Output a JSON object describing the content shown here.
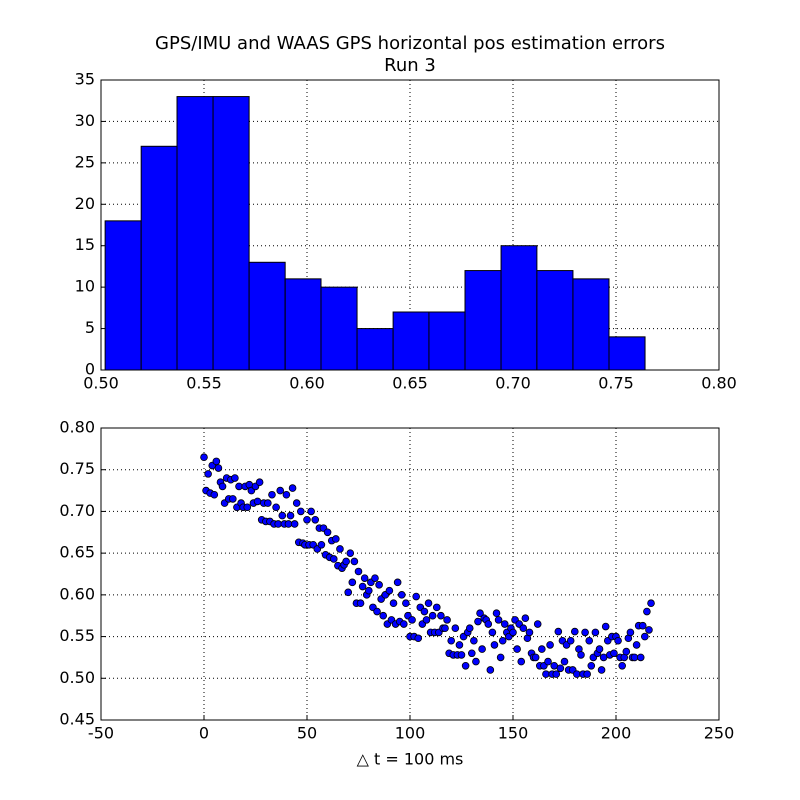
{
  "chart_data": [
    {
      "type": "histogram",
      "title": "GPS/IMU and WAAS GPS horizontal pos estimation errors",
      "subtitle": "Run 3",
      "bins": [
        0.502,
        0.5195,
        0.5369,
        0.5544,
        0.5719,
        0.5894,
        0.6068,
        0.6243,
        0.6418,
        0.6592,
        0.6767,
        0.6942,
        0.7116,
        0.7291,
        0.7466,
        0.7641
      ],
      "counts": [
        18,
        27,
        33,
        33,
        13,
        11,
        10,
        5,
        7,
        7,
        12,
        15,
        12,
        11,
        4
      ],
      "color": "#0000ff",
      "xlim": [
        0.5,
        0.8
      ],
      "xticks": [
        {
          "value": 0.5,
          "label": "0.50"
        },
        0.55,
        {
          "value": 0.6,
          "label": "0.60"
        },
        0.65,
        {
          "value": 0.7,
          "label": "0.70"
        },
        0.75,
        {
          "value": 0.8,
          "label": "0.80"
        }
      ],
      "ylim": [
        0,
        35
      ],
      "yticks": [
        0,
        5,
        10,
        15,
        20,
        25,
        30,
        35
      ],
      "grid": true
    },
    {
      "type": "scatter",
      "xlabel": "△ t = 100 ms",
      "color": "#0000ff",
      "x": [
        0,
        1,
        2,
        3,
        4,
        5,
        6,
        7,
        8,
        9,
        10,
        11,
        12,
        13,
        14,
        15,
        16,
        17,
        18,
        19,
        20,
        21,
        22,
        23,
        24,
        25,
        26,
        27,
        28,
        29,
        30,
        31,
        32,
        33,
        34,
        35,
        36,
        37,
        38,
        39,
        40,
        41,
        42,
        43,
        44,
        45,
        46,
        47,
        48,
        49,
        50,
        51,
        52,
        53,
        54,
        55,
        56,
        57,
        58,
        59,
        60,
        61,
        62,
        63,
        64,
        65,
        66,
        67,
        68,
        69,
        70,
        71,
        72,
        73,
        74,
        75,
        76,
        77,
        78,
        79,
        80,
        81,
        82,
        83,
        84,
        85,
        86,
        87,
        88,
        89,
        90,
        91,
        92,
        93,
        94,
        95,
        96,
        97,
        98,
        99,
        100,
        101,
        102,
        103,
        104,
        105,
        106,
        107,
        108,
        109,
        110,
        111,
        112,
        113,
        114,
        115,
        116,
        117,
        118,
        119,
        120,
        121,
        122,
        123,
        124,
        125,
        126,
        127,
        128,
        129,
        130,
        131,
        132,
        133,
        134,
        135,
        136,
        137,
        138,
        139,
        140,
        141,
        142,
        143,
        144,
        145,
        146,
        147,
        148,
        149,
        150,
        151,
        152,
        153,
        154,
        155,
        156,
        157,
        158,
        159,
        160,
        161,
        162,
        163,
        164,
        165,
        166,
        167,
        168,
        169,
        170,
        171,
        172,
        173,
        174,
        175,
        176,
        177,
        178,
        179,
        180,
        181,
        182,
        183,
        184,
        185,
        186,
        187,
        188,
        189,
        190,
        191,
        192,
        193,
        194,
        195,
        196,
        197,
        198,
        199,
        200,
        201,
        202,
        203,
        204,
        205,
        206,
        207,
        208,
        209,
        210,
        211,
        212,
        213,
        214,
        215,
        216,
        217
      ],
      "values": [
        0.765,
        0.725,
        0.745,
        0.722,
        0.755,
        0.72,
        0.76,
        0.752,
        0.735,
        0.73,
        0.71,
        0.74,
        0.715,
        0.738,
        0.715,
        0.74,
        0.705,
        0.73,
        0.71,
        0.705,
        0.73,
        0.705,
        0.732,
        0.725,
        0.71,
        0.73,
        0.712,
        0.735,
        0.69,
        0.71,
        0.688,
        0.71,
        0.688,
        0.72,
        0.685,
        0.705,
        0.685,
        0.725,
        0.695,
        0.685,
        0.72,
        0.685,
        0.695,
        0.728,
        0.685,
        0.71,
        0.663,
        0.7,
        0.662,
        0.66,
        0.69,
        0.66,
        0.7,
        0.66,
        0.69,
        0.655,
        0.68,
        0.66,
        0.68,
        0.648,
        0.675,
        0.645,
        0.665,
        0.643,
        0.667,
        0.635,
        0.655,
        0.632,
        0.636,
        0.64,
        0.603,
        0.65,
        0.615,
        0.64,
        0.59,
        0.628,
        0.59,
        0.61,
        0.62,
        0.6,
        0.605,
        0.615,
        0.585,
        0.62,
        0.58,
        0.612,
        0.595,
        0.575,
        0.6,
        0.565,
        0.605,
        0.57,
        0.59,
        0.565,
        0.615,
        0.568,
        0.6,
        0.565,
        0.59,
        0.575,
        0.55,
        0.57,
        0.55,
        0.598,
        0.548,
        0.585,
        0.565,
        0.58,
        0.57,
        0.59,
        0.555,
        0.575,
        0.555,
        0.585,
        0.555,
        0.575,
        0.56,
        0.56,
        0.57,
        0.53,
        0.545,
        0.528,
        0.56,
        0.528,
        0.54,
        0.528,
        0.55,
        0.515,
        0.555,
        0.56,
        0.53,
        0.545,
        0.52,
        0.568,
        0.578,
        0.535,
        0.572,
        0.57,
        0.565,
        0.51,
        0.555,
        0.54,
        0.578,
        0.57,
        0.525,
        0.545,
        0.565,
        0.555,
        0.55,
        0.56,
        0.555,
        0.57,
        0.535,
        0.565,
        0.52,
        0.56,
        0.572,
        0.548,
        0.555,
        0.53,
        0.525,
        0.525,
        0.565,
        0.515,
        0.535,
        0.515,
        0.505,
        0.52,
        0.54,
        0.505,
        0.515,
        0.505,
        0.556,
        0.512,
        0.545,
        0.52,
        0.54,
        0.51,
        0.545,
        0.51,
        0.556,
        0.505,
        0.535,
        0.528,
        0.505,
        0.555,
        0.505,
        0.545,
        0.515,
        0.525,
        0.555,
        0.53,
        0.535,
        0.51,
        0.525,
        0.562,
        0.545,
        0.528,
        0.55,
        0.53,
        0.55,
        0.545,
        0.525,
        0.515,
        0.525,
        0.532,
        0.548,
        0.555,
        0.525,
        0.525,
        0.54,
        0.563,
        0.525,
        0.563,
        0.55,
        0.58,
        0.558,
        0.59
      ],
      "xlim": [
        -50,
        250
      ],
      "xticks": [
        -50,
        0,
        50,
        100,
        150,
        200,
        250
      ],
      "ylim": [
        0.45,
        0.8
      ],
      "yticks": [
        0.45,
        {
          "value": 0.5,
          "label": "0.50"
        },
        0.55,
        {
          "value": 0.6,
          "label": "0.60"
        },
        0.65,
        {
          "value": 0.7,
          "label": "0.70"
        },
        0.75,
        {
          "value": 0.8,
          "label": "0.80"
        }
      ],
      "grid": true
    }
  ]
}
